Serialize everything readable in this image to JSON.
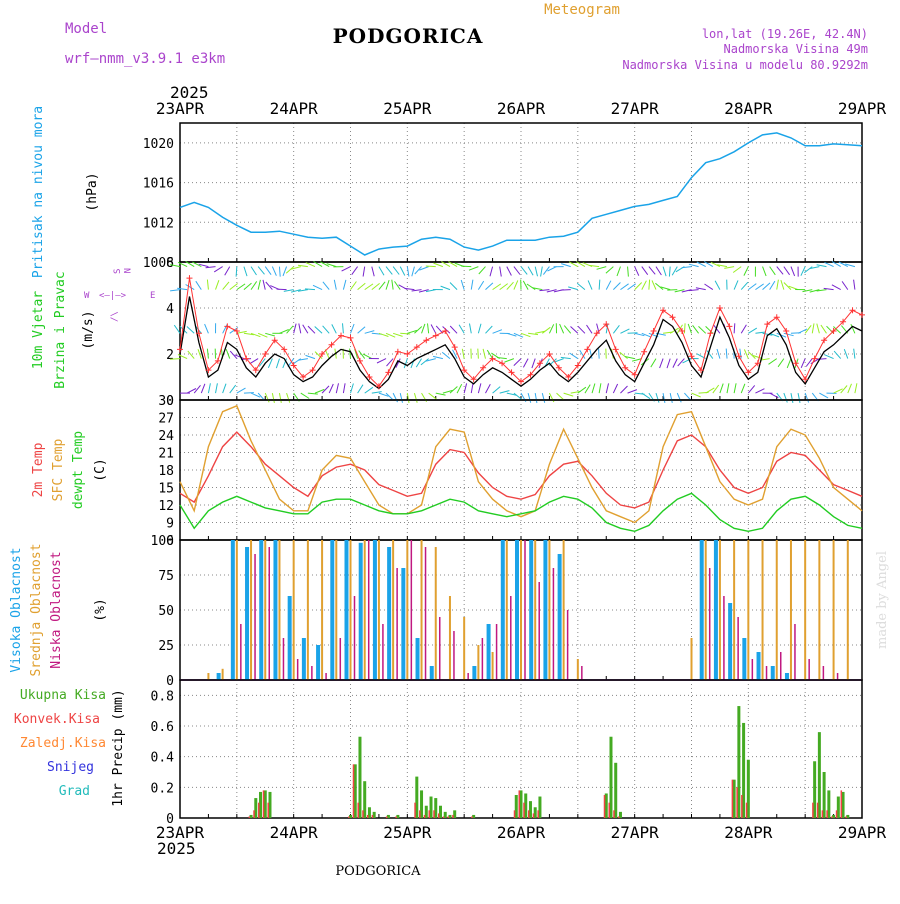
{
  "header": {
    "model_label": "Model",
    "model_name": "wrf—nmm_v3.9.1  e3km",
    "title": "PODGORICA",
    "meteogram": "Meteogram",
    "coords": "lon,lat (19.26E, 42.4N)",
    "elev": "Nadmorska Visina 49m",
    "elev_model": "Nadmorska Visina u modelu 80.9292m",
    "year": "2025",
    "footer_title": "PODGORICA",
    "watermark": "made by Angel"
  },
  "colors": {
    "pressure": "#1aa3e8",
    "wind_speed": "#000000",
    "gust": "#ff3333",
    "t2m": "#ee4444",
    "sfc": "#e0a030",
    "dew": "#22cc22",
    "high_cloud": "#1aa3e8",
    "mid_cloud": "#e0a030",
    "low_cloud": "#c01880",
    "total_precip": "#44aa22",
    "conv_precip": "#ee4444",
    "frz_precip": "#ff8833",
    "snow": "#3333dd",
    "hail": "#22bbbb",
    "purple": "#aa44cc"
  },
  "x_axis": {
    "top_labels": [
      "23APR",
      "24APR",
      "25APR",
      "26APR",
      "27APR",
      "28APR",
      "29APR"
    ],
    "bottom_labels": [
      "23APR",
      "24APR",
      "25APR",
      "26APR",
      "27APR",
      "28APR",
      "29APR"
    ],
    "bottom_year": "2025",
    "hours_total": 144
  },
  "chart_data": [
    {
      "type": "line",
      "id": "pressure",
      "ylabel": "Pritisak na nivou mora",
      "unit": "(hPa)",
      "ylim": [
        1008,
        1022
      ],
      "yticks": [
        "1008",
        "1012",
        "1016",
        "1020"
      ],
      "x_hours": [
        0,
        3,
        6,
        9,
        12,
        15,
        18,
        21,
        24,
        27,
        30,
        33,
        36,
        39,
        42,
        45,
        48,
        51,
        54,
        57,
        60,
        63,
        66,
        69,
        72,
        75,
        78,
        81,
        84,
        87,
        90,
        93,
        96,
        99,
        102,
        105,
        108,
        111,
        114,
        117,
        120,
        123,
        126,
        129,
        132,
        135,
        138,
        141,
        144
      ],
      "values": [
        1013.5,
        1014,
        1013.5,
        1012.5,
        1011.7,
        1011,
        1011,
        1011.1,
        1010.8,
        1010.5,
        1010.4,
        1010.5,
        1009.6,
        1008.7,
        1009.3,
        1009.5,
        1009.6,
        1010.3,
        1010.5,
        1010.3,
        1009.5,
        1009.2,
        1009.6,
        1010.2,
        1010.2,
        1010.2,
        1010.5,
        1010.6,
        1011,
        1012.4,
        1012.8,
        1013.2,
        1013.6,
        1013.8,
        1014.2,
        1014.6,
        1016.5,
        1018,
        1018.4,
        1019.1,
        1020,
        1020.8,
        1021,
        1020.5,
        1019.7,
        1019.7,
        1019.9,
        1019.8,
        1019.7
      ]
    },
    {
      "type": "line",
      "id": "wind",
      "ylabel": "10m Vjetar",
      "ylabel2": "Brzina i Pravac",
      "unit": "(m/s)",
      "ylim": [
        0,
        6
      ],
      "yticks": [
        "0",
        "2",
        "4",
        "6"
      ],
      "compass": {
        "n": "N",
        "s": "S",
        "e": "E",
        "w": "W",
        "arrow_h": "<—|—>",
        "arrow_v": "/\\"
      },
      "x_hours": [
        0,
        2,
        4,
        6,
        8,
        10,
        12,
        14,
        16,
        18,
        20,
        22,
        24,
        26,
        28,
        30,
        32,
        34,
        36,
        38,
        40,
        42,
        44,
        46,
        48,
        50,
        52,
        54,
        56,
        58,
        60,
        62,
        64,
        66,
        68,
        70,
        72,
        74,
        76,
        78,
        80,
        82,
        84,
        86,
        88,
        90,
        92,
        94,
        96,
        98,
        100,
        102,
        104,
        106,
        108,
        110,
        112,
        114,
        116,
        118,
        120,
        122,
        124,
        126,
        128,
        130,
        132,
        134,
        136,
        138,
        140,
        142,
        144
      ],
      "speed": [
        2,
        4.5,
        2.5,
        1,
        1.3,
        2.5,
        2.2,
        1.4,
        1,
        1.6,
        2,
        1.8,
        1.1,
        0.8,
        1,
        1.5,
        1.9,
        2.2,
        2.1,
        1.3,
        0.8,
        0.5,
        0.9,
        1.7,
        1.5,
        1.8,
        2,
        2.2,
        2.4,
        1.8,
        1,
        0.7,
        1.1,
        1.4,
        1.2,
        0.9,
        0.6,
        0.9,
        1.3,
        1.6,
        1.1,
        0.8,
        1.2,
        1.7,
        2.2,
        2.6,
        1.7,
        1.1,
        0.8,
        1.6,
        2.4,
        3.5,
        3.2,
        2.5,
        1.5,
        1,
        2.3,
        3.6,
        2.7,
        1.5,
        0.9,
        1.2,
        2.8,
        3.1,
        2.4,
        1.2,
        0.7,
        1.4,
        2.1,
        2.4,
        2.8,
        3.2,
        3
      ],
      "gust": [
        2.2,
        5.3,
        2.9,
        1.3,
        1.7,
        3.2,
        3,
        1.8,
        1.3,
        2,
        2.6,
        2.2,
        1.5,
        1,
        1.3,
        2,
        2.4,
        2.8,
        2.7,
        1.7,
        1,
        0.6,
        1.2,
        2.1,
        2,
        2.3,
        2.6,
        2.8,
        3,
        2.3,
        1.3,
        0.9,
        1.4,
        1.8,
        1.6,
        1.2,
        0.8,
        1.1,
        1.6,
        2,
        1.4,
        1,
        1.5,
        2.2,
        2.9,
        3.3,
        2.2,
        1.4,
        1.1,
        2.1,
        3,
        3.9,
        3.6,
        3,
        1.9,
        1.3,
        2.9,
        4,
        3.2,
        1.9,
        1.2,
        1.6,
        3.3,
        3.6,
        3,
        1.6,
        0.9,
        1.8,
        2.6,
        3,
        3.4,
        3.9,
        3.7
      ]
    },
    {
      "type": "line",
      "id": "temperature",
      "ylabel": "2m Temp",
      "ylabel2": "SFC Temp",
      "ylabel3": "dewpt Temp",
      "unit": "(C)",
      "ylim": [
        6,
        30
      ],
      "yticks": [
        "6",
        "9",
        "12",
        "15",
        "18",
        "21",
        "24",
        "27",
        "30"
      ],
      "x_hours": [
        0,
        3,
        6,
        9,
        12,
        15,
        18,
        21,
        24,
        27,
        30,
        33,
        36,
        39,
        42,
        45,
        48,
        51,
        54,
        57,
        60,
        63,
        66,
        69,
        72,
        75,
        78,
        81,
        84,
        87,
        90,
        93,
        96,
        99,
        102,
        105,
        108,
        111,
        114,
        117,
        120,
        123,
        126,
        129,
        132,
        135,
        138,
        141,
        144
      ],
      "series": [
        {
          "name": "2m Temp",
          "values": [
            14,
            12.5,
            17,
            22,
            24.5,
            22,
            19,
            17,
            15,
            13.5,
            17,
            18.5,
            19,
            18,
            15.5,
            14.5,
            13.5,
            14,
            19,
            21.5,
            21,
            17.5,
            15,
            13.5,
            13,
            13.8,
            17,
            19,
            19.5,
            17,
            14,
            12,
            11.5,
            12.5,
            18,
            23,
            24,
            22,
            18,
            15,
            14,
            15,
            19.5,
            21,
            20.5,
            18,
            15.5,
            14.5,
            13.5
          ]
        },
        {
          "name": "SFC Temp",
          "values": [
            16,
            11,
            22,
            28,
            29,
            23,
            18,
            13,
            11,
            11,
            18,
            20.5,
            20,
            16,
            12,
            10.5,
            10.5,
            12,
            22,
            25,
            24.5,
            16,
            13,
            11,
            10,
            11,
            19,
            25,
            20,
            15,
            11,
            10,
            9,
            11,
            22,
            27.5,
            28,
            22,
            16,
            13,
            12,
            13,
            22,
            25,
            24,
            20,
            15,
            13,
            11
          ]
        },
        {
          "name": "dewpt Temp",
          "values": [
            12,
            8,
            11,
            12.5,
            13.5,
            12.5,
            11.5,
            11,
            10.5,
            10.5,
            12.5,
            13,
            13,
            12,
            11,
            10.5,
            10.5,
            11,
            12,
            13,
            12.5,
            11,
            10.5,
            10,
            10.5,
            11,
            12.5,
            13.5,
            13,
            11.5,
            9,
            8,
            7.5,
            8.5,
            11,
            13,
            14,
            12,
            9.5,
            8,
            7.5,
            8,
            11,
            13,
            13.5,
            12,
            10,
            8.5,
            8
          ]
        }
      ]
    },
    {
      "type": "bar",
      "id": "clouds",
      "ylabel": "Visoka Oblacnost",
      "ylabel2": "Srednja Oblacnost",
      "ylabel3": "Niska Oblacnost",
      "unit": "(%)",
      "ylim": [
        0,
        100
      ],
      "yticks": [
        "0",
        "25",
        "50",
        "75",
        "100"
      ],
      "x_hours": [
        6,
        9,
        12,
        15,
        18,
        21,
        24,
        27,
        30,
        33,
        36,
        39,
        42,
        45,
        48,
        51,
        54,
        57,
        60,
        63,
        66,
        69,
        72,
        75,
        78,
        81,
        84,
        87,
        90,
        93,
        96,
        99,
        102,
        105,
        108,
        111,
        114,
        117,
        120,
        123,
        126,
        129,
        132,
        135,
        138,
        141
      ],
      "series": [
        {
          "name": "Visoka Oblacnost",
          "values": [
            0,
            5,
            100,
            95,
            100,
            100,
            60,
            30,
            25,
            100,
            100,
            98,
            100,
            95,
            80,
            30,
            10,
            0,
            0,
            10,
            40,
            100,
            100,
            100,
            100,
            90,
            0,
            0,
            0,
            0,
            0,
            0,
            0,
            0,
            0,
            100,
            100,
            55,
            30,
            20,
            10,
            5,
            0,
            0,
            0,
            0
          ]
        },
        {
          "name": "Srednja Oblacnost",
          "values": [
            5,
            8,
            100,
            100,
            100,
            100,
            100,
            100,
            100,
            100,
            100,
            100,
            100,
            100,
            100,
            100,
            95,
            60,
            45,
            25,
            20,
            100,
            100,
            100,
            100,
            100,
            15,
            0,
            0,
            0,
            0,
            0,
            0,
            0,
            30,
            100,
            100,
            100,
            100,
            100,
            100,
            100,
            100,
            100,
            100,
            100
          ]
        },
        {
          "name": "Niska Oblacnost",
          "values": [
            0,
            0,
            40,
            90,
            95,
            30,
            15,
            10,
            5,
            30,
            60,
            100,
            40,
            80,
            100,
            95,
            45,
            35,
            5,
            30,
            40,
            60,
            100,
            70,
            80,
            50,
            10,
            0,
            0,
            0,
            0,
            0,
            0,
            0,
            0,
            80,
            60,
            45,
            15,
            10,
            20,
            40,
            15,
            10,
            5,
            0
          ]
        }
      ]
    },
    {
      "type": "bar",
      "id": "precip",
      "ylabel": "1hr Precip (mm)",
      "ylim": [
        0,
        0.9
      ],
      "yticks": [
        "0",
        "0.2",
        "0.4",
        "0.6",
        "0.8"
      ],
      "legend": [
        "Ukupna Kisa",
        "Konvek.Kisa",
        "Zaledj.Kisa",
        "Snijeg",
        "Grad"
      ],
      "x_hours": [
        15,
        16,
        17,
        18,
        19,
        36,
        37,
        38,
        39,
        40,
        41,
        44,
        46,
        50,
        51,
        52,
        53,
        54,
        55,
        56,
        57,
        58,
        62,
        71,
        72,
        73,
        74,
        75,
        76,
        90,
        91,
        92,
        93,
        117,
        118,
        119,
        120,
        134,
        135,
        136,
        137,
        138,
        139,
        140,
        141
      ],
      "series": [
        {
          "name": "Ukupna Kisa",
          "values": [
            0.02,
            0.13,
            0.17,
            0.18,
            0.17,
            0.02,
            0.35,
            0.53,
            0.24,
            0.07,
            0.04,
            0.02,
            0.02,
            0.27,
            0.18,
            0.08,
            0.14,
            0.13,
            0.08,
            0.04,
            0.02,
            0.05,
            0.02,
            0.15,
            0.18,
            0.16,
            0.11,
            0.07,
            0.14,
            0.16,
            0.53,
            0.36,
            0.04,
            0.25,
            0.73,
            0.62,
            0.38,
            0.37,
            0.56,
            0.3,
            0.18,
            0.02,
            0.14,
            0.17,
            0.02
          ]
        },
        {
          "name": "Konvek.Kisa",
          "values": [
            0.01,
            0.05,
            0.1,
            0.18,
            0.1,
            0.01,
            0.35,
            0.1,
            0.05,
            0.02,
            0.02,
            0.01,
            0.01,
            0.1,
            0.05,
            0.02,
            0.05,
            0.05,
            0.03,
            0.01,
            0.01,
            0.02,
            0.01,
            0.05,
            0.18,
            0.1,
            0.05,
            0.03,
            0.05,
            0.15,
            0.1,
            0.05,
            0.01,
            0.25,
            0.2,
            0.15,
            0.1,
            0.1,
            0.1,
            0.05,
            0.05,
            0.01,
            0.05,
            0.18,
            0.01
          ]
        }
      ]
    }
  ]
}
